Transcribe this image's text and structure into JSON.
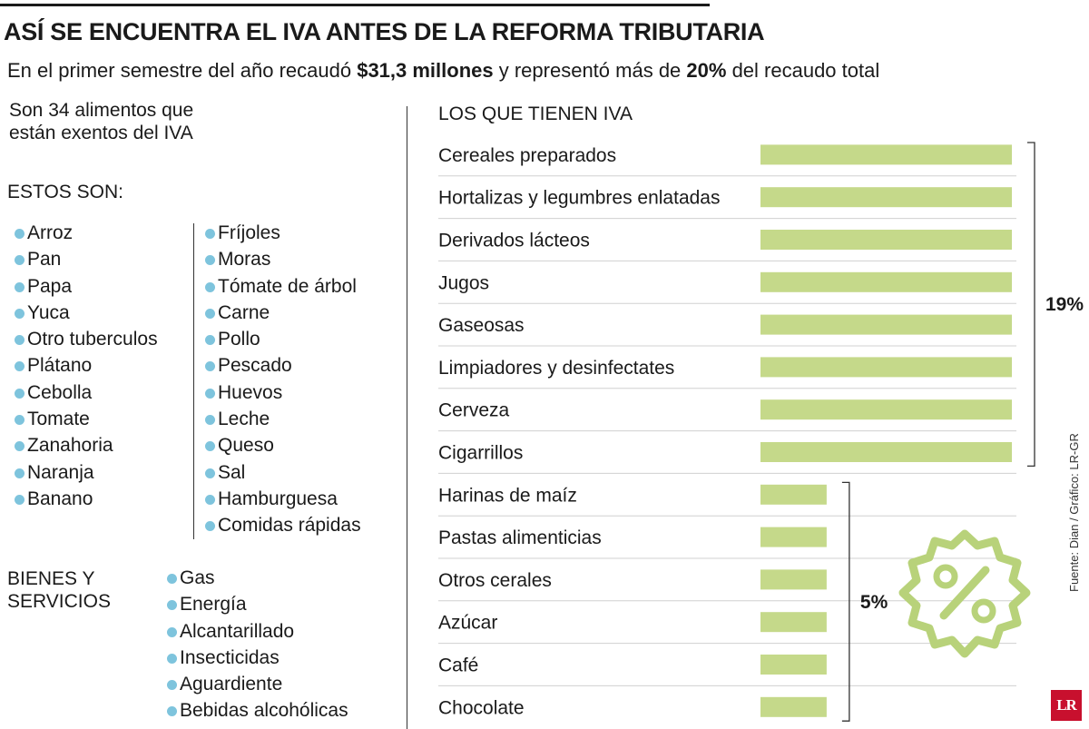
{
  "header": {
    "title": "ASÍ SE ENCUENTRA EL IVA ANTES DE LA REFORMA TRIBUTARIA",
    "subtitle_pre": "En el primer semestre del año recaudó ",
    "subtitle_amount": "$31,3 millones",
    "subtitle_mid": " y representó más de ",
    "subtitle_percent": "20%",
    "subtitle_post": " del recaudo total"
  },
  "exempt": {
    "intro_pre": "Son ",
    "intro_count": "34",
    "intro_post": " alimentos que están exentos del IVA",
    "list_label": "ESTOS SON:",
    "column1": [
      "Arroz",
      "Pan",
      "Papa",
      "Yuca",
      "Otro tuberculos",
      "Plátano",
      "Cebolla",
      "Tomate",
      "Zanahoria",
      "Naranja",
      "Banano"
    ],
    "column2": [
      "Fríjoles",
      "Moras",
      "Tómate de árbol",
      "Carne",
      "Pollo",
      "Pescado",
      "Huevos",
      "Leche",
      "Queso",
      "Sal",
      "Hamburguesa",
      "Comidas rápidas"
    ]
  },
  "services": {
    "label_line1": "BIENES Y",
    "label_line2": "SERVICIOS",
    "items": [
      "Gas",
      "Energía",
      "Alcantarillado",
      "Insecticidas",
      "Aguardiente",
      "Bebidas alcohólicas"
    ]
  },
  "chart_data": {
    "type": "bar",
    "title": "LOS QUE TIENEN IVA",
    "orientation": "horizontal",
    "unit": "%",
    "categories": [
      "Cereales preparados",
      "Hortalizas y legumbres enlatadas",
      "Derivados lácteos",
      "Jugos",
      "Gaseosas",
      "Limpiadores y desinfectates",
      "Cerveza",
      "Cigarrillos",
      "Harinas de maíz",
      "Pastas alimenticias",
      "Otros cerales",
      "Azúcar",
      "Café",
      "Chocolate"
    ],
    "values": [
      19,
      19,
      19,
      19,
      19,
      19,
      19,
      19,
      5,
      5,
      5,
      5,
      5,
      5
    ],
    "groups": [
      {
        "label": "19%",
        "value": 19
      },
      {
        "label": "5%",
        "value": 5
      }
    ],
    "bar_color": "#c5d98a"
  },
  "footer": {
    "source": "Fuente: Dian / Gráfico: LR-GR",
    "logo": "LR"
  }
}
